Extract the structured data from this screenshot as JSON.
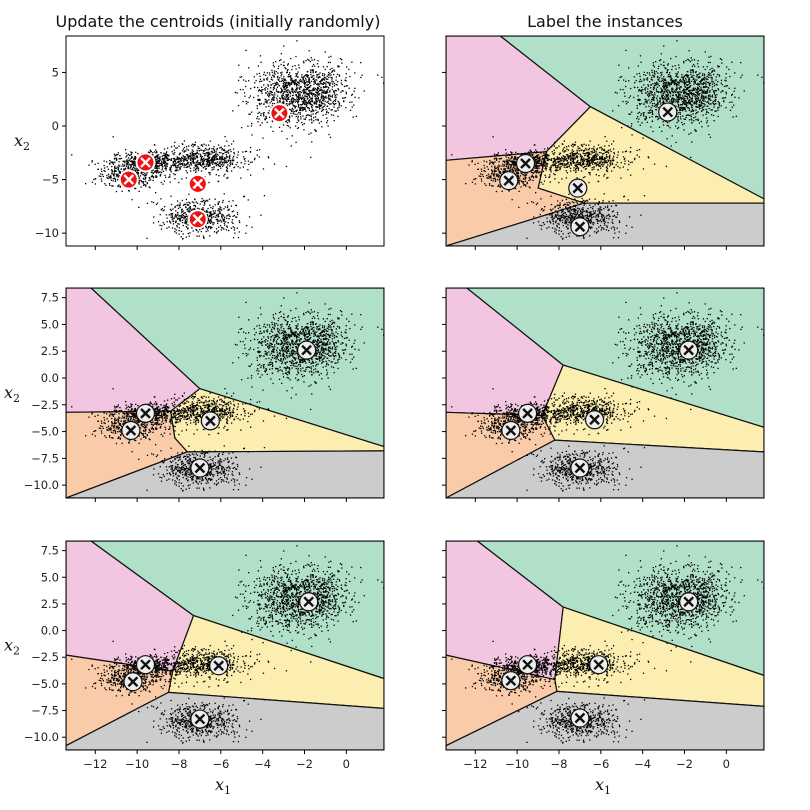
{
  "chart_data": {
    "type": "scatter",
    "titles": [
      "Update the centroids (initially randomly)",
      "Label the instances"
    ],
    "xlabel": "x",
    "xlabel_sub": "1",
    "ylabel": "x",
    "ylabel_sub": "2",
    "xlim": [
      -13.4,
      1.8
    ],
    "ylim": [
      -11.2,
      8.4
    ],
    "x_ticks": [
      -12,
      -10,
      -8,
      -6,
      -4,
      -2,
      0
    ],
    "y_ticks_row1": [
      5,
      0,
      -5,
      -10
    ],
    "y_ticks_rows23": [
      7.5,
      5.0,
      2.5,
      0.0,
      -2.5,
      -5.0,
      -7.5,
      -10.0
    ],
    "blobs": [
      {
        "center": [
          -2.8,
          2.8
        ],
        "std": [
          1.0,
          1.6
        ],
        "count": 650
      },
      {
        "center": [
          -1.5,
          3.2
        ],
        "std": [
          0.8,
          1.3
        ],
        "count": 550
      },
      {
        "center": [
          -9.5,
          -3.4
        ],
        "std": [
          0.8,
          0.5
        ],
        "count": 450
      },
      {
        "center": [
          -10.4,
          -4.6
        ],
        "std": [
          0.7,
          0.6
        ],
        "count": 350
      },
      {
        "center": [
          -6.8,
          -3.1
        ],
        "std": [
          1.0,
          0.7
        ],
        "count": 550
      },
      {
        "center": [
          -7.0,
          -8.5
        ],
        "std": [
          0.8,
          0.8
        ],
        "count": 550
      }
    ],
    "region_colors": {
      "pink": "#f2c6e0",
      "green": "#b1e0c8",
      "yellow": "#fcedb0",
      "orange": "#f9cba8",
      "gray": "#cccccc"
    },
    "centroid_colors": {
      "initial": "#ee1111",
      "updated": "#eeeeee"
    },
    "panels": [
      {
        "row": 0,
        "col": 0,
        "show_regions": false,
        "centroids": [
          [
            -3.2,
            1.2
          ],
          [
            -9.6,
            -3.4
          ],
          [
            -10.4,
            -5.0
          ],
          [
            -7.1,
            -5.4
          ],
          [
            -7.1,
            -8.7
          ]
        ],
        "marker": "initial"
      },
      {
        "row": 0,
        "col": 1,
        "show_regions": true,
        "centroids": [
          [
            -2.8,
            1.3
          ],
          [
            -9.6,
            -3.5
          ],
          [
            -10.4,
            -5.1
          ],
          [
            -7.1,
            -5.8
          ],
          [
            -7.0,
            -9.4
          ]
        ],
        "marker": "updated",
        "regions": {
          "pink": [
            [
              -13.4,
              8.4
            ],
            [
              -10.8,
              8.4
            ],
            [
              -6.5,
              1.8
            ],
            [
              -8.6,
              -2.4
            ],
            [
              -13.4,
              -3.2
            ]
          ],
          "green": [
            [
              -10.8,
              8.4
            ],
            [
              1.8,
              8.4
            ],
            [
              1.8,
              -6.8
            ],
            [
              -6.5,
              1.8
            ]
          ],
          "yellow": [
            [
              -6.5,
              1.8
            ],
            [
              1.8,
              -6.8
            ],
            [
              1.8,
              -7.2
            ],
            [
              -6.8,
              -7.2
            ],
            [
              -9.0,
              -5.8
            ],
            [
              -8.6,
              -2.4
            ]
          ],
          "orange": [
            [
              -13.4,
              -3.2
            ],
            [
              -8.6,
              -2.4
            ],
            [
              -9.0,
              -5.8
            ],
            [
              -6.8,
              -7.2
            ],
            [
              -13.4,
              -11.2
            ]
          ],
          "gray": [
            [
              -13.4,
              -11.2
            ],
            [
              -6.8,
              -7.2
            ],
            [
              1.8,
              -7.2
            ],
            [
              1.8,
              -11.2
            ]
          ]
        }
      },
      {
        "row": 1,
        "col": 0,
        "show_regions": true,
        "centroids": [
          [
            -1.9,
            2.6
          ],
          [
            -9.6,
            -3.3
          ],
          [
            -10.3,
            -4.9
          ],
          [
            -6.5,
            -4.0
          ],
          [
            -7.0,
            -8.4
          ]
        ],
        "marker": "updated",
        "regions": {
          "pink": [
            [
              -13.4,
              8.4
            ],
            [
              -12.2,
              8.4
            ],
            [
              -7.0,
              -1.0
            ],
            [
              -8.4,
              -3.1
            ],
            [
              -13.4,
              -3.2
            ]
          ],
          "green": [
            [
              -12.2,
              8.4
            ],
            [
              1.8,
              8.4
            ],
            [
              1.8,
              -6.4
            ],
            [
              -7.0,
              -1.0
            ]
          ],
          "yellow": [
            [
              -7.0,
              -1.0
            ],
            [
              1.8,
              -6.4
            ],
            [
              1.8,
              -6.8
            ],
            [
              -7.6,
              -6.9
            ],
            [
              -8.2,
              -5.6
            ],
            [
              -8.4,
              -3.1
            ]
          ],
          "orange": [
            [
              -13.4,
              -3.2
            ],
            [
              -8.4,
              -3.1
            ],
            [
              -8.2,
              -5.6
            ],
            [
              -7.6,
              -6.9
            ],
            [
              -13.4,
              -11.2
            ]
          ],
          "gray": [
            [
              -13.4,
              -11.2
            ],
            [
              -7.6,
              -6.9
            ],
            [
              1.8,
              -6.8
            ],
            [
              1.8,
              -11.2
            ]
          ]
        }
      },
      {
        "row": 1,
        "col": 1,
        "show_regions": true,
        "centroids": [
          [
            -1.8,
            2.6
          ],
          [
            -9.5,
            -3.3
          ],
          [
            -10.3,
            -4.9
          ],
          [
            -6.3,
            -3.9
          ],
          [
            -7.0,
            -8.4
          ]
        ],
        "marker": "updated",
        "regions": {
          "pink": [
            [
              -13.4,
              8.4
            ],
            [
              -12.4,
              8.4
            ],
            [
              -7.8,
              1.2
            ],
            [
              -8.8,
              -3.5
            ],
            [
              -13.4,
              -3.2
            ]
          ],
          "green": [
            [
              -12.4,
              8.4
            ],
            [
              1.8,
              8.4
            ],
            [
              1.8,
              -4.6
            ],
            [
              -7.8,
              1.2
            ]
          ],
          "yellow": [
            [
              -7.8,
              1.2
            ],
            [
              1.8,
              -4.6
            ],
            [
              1.8,
              -6.9
            ],
            [
              -8.2,
              -5.8
            ],
            [
              -8.8,
              -3.5
            ]
          ],
          "orange": [
            [
              -13.4,
              -3.2
            ],
            [
              -8.8,
              -3.5
            ],
            [
              -8.2,
              -5.8
            ],
            [
              -13.4,
              -11.2
            ]
          ],
          "gray": [
            [
              -13.4,
              -11.2
            ],
            [
              -8.2,
              -5.8
            ],
            [
              1.8,
              -6.9
            ],
            [
              1.8,
              -11.2
            ]
          ]
        }
      },
      {
        "row": 2,
        "col": 0,
        "show_regions": true,
        "centroids": [
          [
            -1.8,
            2.7
          ],
          [
            -9.6,
            -3.2
          ],
          [
            -10.2,
            -4.8
          ],
          [
            -6.1,
            -3.3
          ],
          [
            -7.0,
            -8.3
          ]
        ],
        "marker": "updated",
        "regions": {
          "pink": [
            [
              -13.4,
              8.4
            ],
            [
              -12.2,
              8.4
            ],
            [
              -7.3,
              1.4
            ],
            [
              -8.3,
              -3.8
            ],
            [
              -13.4,
              -2.3
            ]
          ],
          "green": [
            [
              -12.2,
              8.4
            ],
            [
              1.8,
              8.4
            ],
            [
              1.8,
              -4.5
            ],
            [
              -7.3,
              1.4
            ]
          ],
          "yellow": [
            [
              -7.3,
              1.4
            ],
            [
              1.8,
              -4.5
            ],
            [
              1.8,
              -7.3
            ],
            [
              -8.5,
              -5.8
            ],
            [
              -8.3,
              -3.8
            ]
          ],
          "orange": [
            [
              -13.4,
              -2.3
            ],
            [
              -8.3,
              -3.8
            ],
            [
              -8.5,
              -5.8
            ],
            [
              -13.4,
              -10.8
            ]
          ],
          "gray": [
            [
              -13.4,
              -10.8
            ],
            [
              -8.5,
              -5.8
            ],
            [
              1.8,
              -7.3
            ],
            [
              1.8,
              -11.2
            ],
            [
              -13.4,
              -11.2
            ]
          ]
        }
      },
      {
        "row": 2,
        "col": 1,
        "show_regions": true,
        "centroids": [
          [
            -1.8,
            2.7
          ],
          [
            -9.5,
            -3.2
          ],
          [
            -10.3,
            -4.7
          ],
          [
            -6.1,
            -3.2
          ],
          [
            -7.0,
            -8.2
          ]
        ],
        "marker": "updated",
        "regions": {
          "pink": [
            [
              -13.4,
              8.4
            ],
            [
              -11.9,
              8.4
            ],
            [
              -7.8,
              2.2
            ],
            [
              -8.2,
              -4.6
            ],
            [
              -13.4,
              -2.3
            ]
          ],
          "green": [
            [
              -11.9,
              8.4
            ],
            [
              1.8,
              8.4
            ],
            [
              1.8,
              -4.2
            ],
            [
              -7.8,
              2.2
            ]
          ],
          "yellow": [
            [
              -7.8,
              2.2
            ],
            [
              1.8,
              -4.2
            ],
            [
              1.8,
              -7.1
            ],
            [
              -8.1,
              -5.7
            ],
            [
              -8.2,
              -4.6
            ]
          ],
          "orange": [
            [
              -13.4,
              -2.3
            ],
            [
              -8.2,
              -4.6
            ],
            [
              -8.1,
              -5.7
            ],
            [
              -13.4,
              -10.8
            ]
          ],
          "gray": [
            [
              -13.4,
              -10.8
            ],
            [
              -8.1,
              -5.7
            ],
            [
              1.8,
              -7.1
            ],
            [
              1.8,
              -11.2
            ],
            [
              -13.4,
              -11.2
            ]
          ]
        }
      }
    ]
  }
}
